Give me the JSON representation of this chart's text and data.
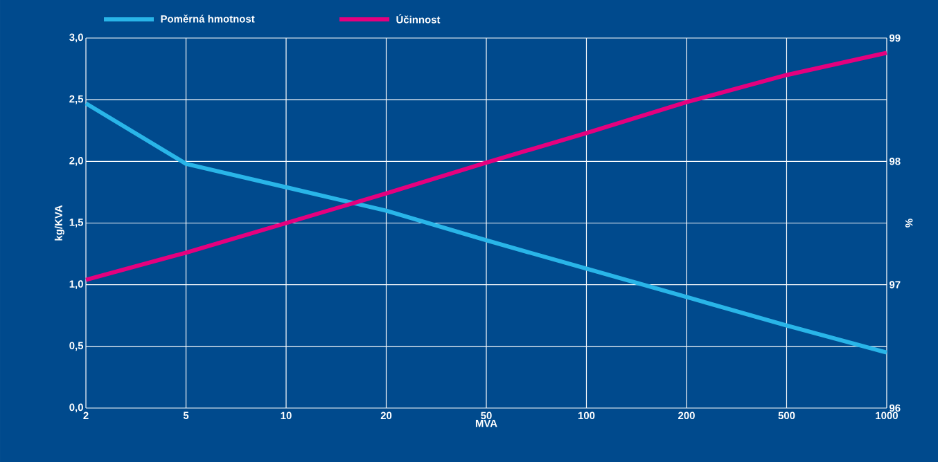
{
  "chart_data": {
    "type": "line",
    "categories": [
      "2",
      "5",
      "10",
      "20",
      "50",
      "100",
      "200",
      "500",
      "1000"
    ],
    "series": [
      {
        "name": "Poměrná hmotnost",
        "color": "#29b5e8",
        "values": [
          2.47,
          1.98,
          1.79,
          1.6,
          1.36,
          1.13,
          0.9,
          0.67,
          0.45
        ]
      },
      {
        "name": "Účinnost",
        "color": "#e5007e",
        "axis": "y2",
        "values": [
          97.04,
          97.26,
          97.5,
          97.74,
          97.99,
          98.23,
          98.48,
          98.7,
          98.88
        ]
      }
    ],
    "xlabel": "MVA",
    "ylabel": "kg/KVA",
    "y2label": "%",
    "ylim": [
      0,
      3
    ],
    "yticks": [
      {
        "value": 0,
        "label": "0,0"
      },
      {
        "value": 0.5,
        "label": "0,5"
      },
      {
        "value": 1,
        "label": "1,0"
      },
      {
        "value": 1.5,
        "label": "1,5"
      },
      {
        "value": 2,
        "label": "2,0"
      },
      {
        "value": 2.5,
        "label": "2,5"
      },
      {
        "value": 3,
        "label": "3,0"
      }
    ],
    "y2lim": [
      96,
      99
    ],
    "y2ticks": [
      96,
      97,
      98,
      99
    ],
    "grid": true,
    "legend": "top",
    "marker": "none",
    "line_style": "solid"
  }
}
